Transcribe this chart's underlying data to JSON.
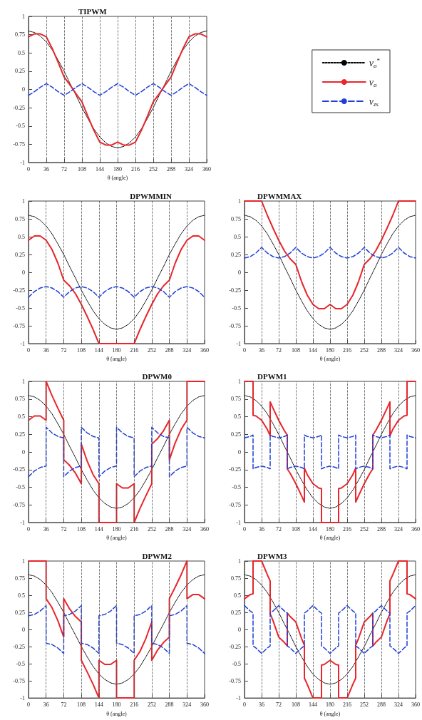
{
  "chart_data": [
    {
      "type": "line",
      "title": "TIPWM",
      "xlabel": "θ (angle)",
      "xlim": [
        0,
        360
      ],
      "xticks": [
        0,
        36,
        72,
        108,
        144,
        180,
        216,
        252,
        288,
        324,
        360
      ],
      "ylim": [
        -1,
        1
      ],
      "yticks": [
        -1,
        -0.75,
        -0.5,
        -0.25,
        0,
        0.25,
        0.5,
        0.75,
        1
      ],
      "grid": "x",
      "legend": "right",
      "x": [
        0,
        12,
        24,
        36,
        48,
        60,
        72,
        84,
        96,
        108,
        120,
        132,
        144,
        156,
        168,
        180,
        192,
        204,
        216,
        228,
        240,
        252,
        264,
        276,
        288,
        300,
        312,
        324,
        336,
        348,
        360
      ],
      "series": [
        {
          "name": "v$_{a}$$^{*}$",
          "color": "#000000",
          "line_style": "dotted",
          "values": [
            0.8,
            0.78,
            0.73,
            0.65,
            0.54,
            0.4,
            0.25,
            0.08,
            -0.08,
            -0.25,
            -0.4,
            -0.54,
            -0.65,
            -0.73,
            -0.78,
            -0.8,
            -0.78,
            -0.73,
            -0.65,
            -0.54,
            -0.4,
            -0.25,
            -0.08,
            0.08,
            0.25,
            0.4,
            0.54,
            0.65,
            0.73,
            0.78,
            0.8
          ]
        },
        {
          "name": "v$_{a}$",
          "color": "#e8262b",
          "line_style": "solid",
          "values": [
            0.72,
            0.76,
            0.76,
            0.72,
            0.56,
            0.37,
            0.17,
            0.06,
            -0.06,
            -0.17,
            -0.37,
            -0.56,
            -0.72,
            -0.76,
            -0.76,
            -0.72,
            -0.76,
            -0.76,
            -0.72,
            -0.56,
            -0.37,
            -0.17,
            -0.06,
            0.06,
            0.17,
            0.37,
            0.56,
            0.72,
            0.76,
            0.76,
            0.72
          ]
        },
        {
          "name": "v$_{zs}$",
          "color": "#1f3fd6",
          "line_style": "dashed",
          "values": [
            -0.08,
            -0.03,
            0.03,
            0.08,
            0.03,
            -0.03,
            -0.08,
            -0.03,
            0.03,
            0.08,
            0.03,
            -0.03,
            -0.08,
            -0.03,
            0.03,
            0.08,
            0.03,
            -0.03,
            -0.08,
            -0.03,
            0.03,
            0.08,
            0.03,
            -0.03,
            -0.08,
            -0.03,
            0.03,
            0.08,
            0.03,
            -0.03,
            -0.08
          ]
        }
      ]
    },
    {
      "type": "line",
      "title": "DPWMMIN",
      "xlabel": "θ (angle)",
      "xlim": [
        0,
        360
      ],
      "xticks": [
        0,
        36,
        72,
        108,
        144,
        180,
        216,
        252,
        288,
        324,
        360
      ],
      "ylim": [
        -1,
        1
      ],
      "yticks": [
        -1,
        -0.75,
        -0.5,
        -0.25,
        0,
        0.25,
        0.5,
        0.75,
        1
      ],
      "grid": "x",
      "x": [
        0,
        12,
        24,
        36,
        48,
        60,
        72,
        84,
        96,
        108,
        120,
        132,
        144,
        156,
        168,
        180,
        192,
        204,
        216,
        228,
        240,
        252,
        264,
        276,
        288,
        300,
        312,
        324,
        336,
        348,
        360
      ],
      "series": [
        {
          "color": "#000000",
          "line_style": "dotted",
          "values": [
            0.8,
            0.78,
            0.73,
            0.65,
            0.54,
            0.4,
            0.25,
            0.08,
            -0.08,
            -0.25,
            -0.4,
            -0.54,
            -0.65,
            -0.73,
            -0.78,
            -0.8,
            -0.78,
            -0.73,
            -0.65,
            -0.54,
            -0.4,
            -0.25,
            -0.08,
            0.08,
            0.25,
            0.4,
            0.54,
            0.65,
            0.73,
            0.78,
            0.8
          ]
        },
        {
          "color": "#e8262b",
          "line_style": "solid",
          "values": [
            0.45,
            0.51,
            0.51,
            0.45,
            0.32,
            0.13,
            -0.11,
            -0.19,
            -0.3,
            -0.45,
            -0.62,
            -0.8,
            -1,
            -1,
            -1,
            -1,
            -1,
            -1,
            -1,
            -0.8,
            -0.62,
            -0.45,
            -0.3,
            -0.19,
            -0.11,
            0.13,
            0.32,
            0.45,
            0.51,
            0.51,
            0.45
          ]
        },
        {
          "color": "#1f3fd6",
          "line_style": "dashed",
          "values": [
            -0.35,
            -0.27,
            -0.22,
            -0.2,
            -0.22,
            -0.27,
            -0.35,
            -0.27,
            -0.22,
            -0.2,
            -0.22,
            -0.27,
            -0.35,
            -0.27,
            -0.22,
            -0.2,
            -0.22,
            -0.27,
            -0.35,
            -0.27,
            -0.22,
            -0.2,
            -0.22,
            -0.27,
            -0.35,
            -0.27,
            -0.22,
            -0.2,
            -0.22,
            -0.27,
            -0.35
          ]
        }
      ]
    },
    {
      "type": "line",
      "title": "DPWMMAX",
      "xlabel": "θ (angle)",
      "xlim": [
        0,
        360
      ],
      "xticks": [
        0,
        36,
        72,
        108,
        144,
        180,
        216,
        252,
        288,
        324,
        360
      ],
      "ylim": [
        -1,
        1
      ],
      "yticks": [
        -1,
        -0.75,
        -0.5,
        -0.25,
        0,
        0.25,
        0.5,
        0.75,
        1
      ],
      "grid": "x",
      "x": [
        0,
        12,
        24,
        36,
        48,
        60,
        72,
        84,
        96,
        108,
        120,
        132,
        144,
        156,
        168,
        180,
        192,
        204,
        216,
        228,
        240,
        252,
        264,
        276,
        288,
        300,
        312,
        324,
        336,
        348,
        360
      ],
      "series": [
        {
          "color": "#000000",
          "line_style": "dotted",
          "values": [
            0.8,
            0.78,
            0.73,
            0.65,
            0.54,
            0.4,
            0.25,
            0.08,
            -0.08,
            -0.25,
            -0.4,
            -0.54,
            -0.65,
            -0.73,
            -0.78,
            -0.8,
            -0.78,
            -0.73,
            -0.65,
            -0.54,
            -0.4,
            -0.25,
            -0.08,
            0.08,
            0.25,
            0.4,
            0.54,
            0.65,
            0.73,
            0.78,
            0.8
          ]
        },
        {
          "color": "#e8262b",
          "line_style": "solid",
          "values": [
            1,
            1,
            1,
            1,
            0.8,
            0.62,
            0.45,
            0.3,
            0.19,
            0.11,
            -0.13,
            -0.32,
            -0.45,
            -0.51,
            -0.51,
            -0.45,
            -0.51,
            -0.51,
            -0.45,
            -0.32,
            -0.13,
            0.11,
            0.19,
            0.3,
            0.45,
            0.62,
            0.8,
            1,
            1,
            1,
            1
          ]
        },
        {
          "color": "#1f3fd6",
          "line_style": "dashed",
          "values": [
            0.2,
            0.22,
            0.27,
            0.35,
            0.27,
            0.22,
            0.2,
            0.22,
            0.27,
            0.35,
            0.27,
            0.22,
            0.2,
            0.22,
            0.27,
            0.35,
            0.27,
            0.22,
            0.2,
            0.22,
            0.27,
            0.35,
            0.27,
            0.22,
            0.2,
            0.22,
            0.27,
            0.35,
            0.27,
            0.22,
            0.2
          ]
        }
      ]
    },
    {
      "type": "line",
      "title": "DPWM0",
      "xlabel": "θ (angle)",
      "xlim": [
        0,
        360
      ],
      "xticks": [
        0,
        36,
        72,
        108,
        144,
        180,
        216,
        252,
        288,
        324,
        360
      ],
      "ylim": [
        -1,
        1
      ],
      "yticks": [
        -1,
        -0.75,
        -0.5,
        -0.25,
        0,
        0.25,
        0.5,
        0.75,
        1
      ],
      "grid": "x",
      "x": [
        0,
        12,
        24,
        36,
        48,
        60,
        72,
        84,
        96,
        108,
        120,
        132,
        144,
        156,
        168,
        180,
        192,
        204,
        216,
        228,
        240,
        252,
        264,
        276,
        288,
        300,
        312,
        324,
        336,
        348,
        360
      ],
      "series": [
        {
          "color": "#000000",
          "line_style": "dotted",
          "values": [
            0.8,
            0.78,
            0.73,
            0.65,
            0.54,
            0.4,
            0.25,
            0.08,
            -0.08,
            -0.25,
            -0.4,
            -0.54,
            -0.65,
            -0.73,
            -0.78,
            -0.8,
            -0.78,
            -0.73,
            -0.65,
            -0.54,
            -0.4,
            -0.25,
            -0.08,
            0.08,
            0.25,
            0.4,
            0.54,
            0.65,
            0.73,
            0.78,
            0.8
          ]
        },
        {
          "color": "#e8262b",
          "line_style": "solid",
          "x": [
            0,
            12,
            24,
            36,
            36,
            48,
            60,
            72,
            72,
            84,
            96,
            108,
            108,
            120,
            132,
            144,
            144,
            156,
            168,
            180,
            180,
            192,
            204,
            216,
            216,
            228,
            240,
            252,
            252,
            264,
            276,
            288,
            288,
            300,
            312,
            324,
            324,
            336,
            348,
            360
          ],
          "values": [
            0.45,
            0.51,
            0.51,
            0.45,
            1,
            0.8,
            0.62,
            0.45,
            -0.11,
            -0.19,
            -0.3,
            -0.45,
            0.11,
            -0.13,
            -0.32,
            -0.45,
            -1,
            -1,
            -1,
            -1,
            -0.45,
            -0.51,
            -0.51,
            -0.45,
            -1,
            -0.8,
            -0.62,
            -0.45,
            0.11,
            0.19,
            0.3,
            0.45,
            -0.11,
            0.13,
            0.32,
            0.45,
            1,
            1,
            1,
            1
          ]
        },
        {
          "color": "#1f3fd6",
          "line_style": "dashed",
          "x": [
            0,
            12,
            24,
            36,
            36,
            48,
            60,
            72,
            72,
            84,
            96,
            108,
            108,
            120,
            132,
            144,
            144,
            156,
            168,
            180,
            180,
            192,
            204,
            216,
            216,
            228,
            240,
            252,
            252,
            264,
            276,
            288,
            288,
            300,
            312,
            324,
            324,
            336,
            348,
            360
          ],
          "values": [
            -0.35,
            -0.27,
            -0.22,
            -0.2,
            0.35,
            0.27,
            0.22,
            0.2,
            -0.35,
            -0.27,
            -0.22,
            -0.2,
            0.35,
            0.27,
            0.22,
            0.2,
            -0.35,
            -0.27,
            -0.22,
            -0.2,
            0.35,
            0.27,
            0.22,
            0.2,
            -0.35,
            -0.27,
            -0.22,
            -0.2,
            0.35,
            0.27,
            0.22,
            0.2,
            -0.35,
            -0.27,
            -0.22,
            -0.2,
            0.35,
            0.27,
            0.22,
            0.2
          ]
        }
      ]
    },
    {
      "type": "line",
      "title": "DPWM1",
      "xlabel": "θ (angle)",
      "xlim": [
        0,
        360
      ],
      "xticks": [
        0,
        36,
        72,
        108,
        144,
        180,
        216,
        252,
        288,
        324,
        360
      ],
      "ylim": [
        -1,
        1
      ],
      "yticks": [
        -1,
        -0.75,
        -0.5,
        -0.25,
        0,
        0.25,
        0.5,
        0.75,
        1
      ],
      "grid": "x",
      "x": [
        0,
        12,
        24,
        36,
        48,
        60,
        72,
        84,
        96,
        108,
        120,
        132,
        144,
        156,
        168,
        180,
        192,
        204,
        216,
        228,
        240,
        252,
        264,
        276,
        288,
        300,
        312,
        324,
        336,
        348,
        360
      ],
      "series": [
        {
          "color": "#000000",
          "line_style": "dotted",
          "values": [
            0.8,
            0.78,
            0.73,
            0.65,
            0.54,
            0.4,
            0.25,
            0.08,
            -0.08,
            -0.25,
            -0.4,
            -0.54,
            -0.65,
            -0.73,
            -0.78,
            -0.8,
            -0.78,
            -0.73,
            -0.65,
            -0.54,
            -0.4,
            -0.25,
            -0.08,
            0.08,
            0.25,
            0.4,
            0.54,
            0.65,
            0.73,
            0.78,
            0.8
          ]
        },
        {
          "color": "#e8262b",
          "line_style": "solid",
          "x": [
            0,
            12,
            18,
            18,
            24,
            36,
            48,
            54,
            54,
            60,
            72,
            84,
            90,
            90,
            96,
            108,
            120,
            126,
            126,
            132,
            144,
            156,
            162,
            162,
            168,
            180,
            192,
            198,
            198,
            204,
            216,
            228,
            234,
            234,
            240,
            252,
            264,
            270,
            270,
            276,
            288,
            300,
            306,
            306,
            312,
            324,
            336,
            342,
            342,
            348,
            360
          ],
          "values": [
            1,
            1,
            1,
            0.52,
            0.51,
            0.45,
            0.32,
            0.23,
            0.71,
            0.62,
            0.45,
            0.3,
            0.24,
            -0.24,
            -0.3,
            -0.45,
            -0.62,
            -0.71,
            -0.23,
            -0.32,
            -0.45,
            -0.51,
            -0.52,
            -1,
            -1,
            -1,
            -1,
            -1,
            -0.52,
            -0.51,
            -0.45,
            -0.32,
            -0.23,
            -0.71,
            -0.62,
            -0.45,
            -0.3,
            -0.24,
            0.24,
            0.3,
            0.45,
            0.62,
            0.71,
            0.23,
            0.32,
            0.45,
            0.51,
            0.52,
            1,
            1,
            1
          ]
        },
        {
          "color": "#1f3fd6",
          "line_style": "dashed",
          "x": [
            0,
            12,
            18,
            18,
            24,
            36,
            48,
            54,
            54,
            60,
            72,
            84,
            90,
            90,
            96,
            108,
            120,
            126,
            126,
            132,
            144,
            156,
            162,
            162,
            168,
            180,
            192,
            198,
            198,
            204,
            216,
            228,
            234,
            234,
            240,
            252,
            264,
            270,
            270,
            276,
            288,
            300,
            306,
            306,
            312,
            324,
            336,
            342,
            342,
            348,
            360
          ],
          "values": [
            0.2,
            0.22,
            0.24,
            -0.24,
            -0.22,
            -0.2,
            -0.22,
            -0.24,
            0.24,
            0.22,
            0.2,
            0.22,
            0.24,
            -0.24,
            -0.22,
            -0.2,
            -0.22,
            -0.24,
            0.24,
            0.22,
            0.2,
            0.22,
            0.24,
            -0.24,
            -0.22,
            -0.2,
            -0.22,
            -0.24,
            0.24,
            0.22,
            0.2,
            0.22,
            0.24,
            -0.24,
            -0.22,
            -0.2,
            -0.22,
            -0.24,
            0.24,
            0.22,
            0.2,
            0.22,
            0.24,
            -0.24,
            -0.22,
            -0.2,
            -0.22,
            -0.24,
            0.24,
            0.22,
            0.2
          ]
        }
      ]
    },
    {
      "type": "line",
      "title": "DPWM2",
      "xlabel": "θ (angle)",
      "xlim": [
        0,
        360
      ],
      "xticks": [
        0,
        36,
        72,
        108,
        144,
        180,
        216,
        252,
        288,
        324,
        360
      ],
      "ylim": [
        -1,
        1
      ],
      "yticks": [
        -1,
        -0.75,
        -0.5,
        -0.25,
        0,
        0.25,
        0.5,
        0.75,
        1
      ],
      "grid": "x",
      "x": [
        0,
        12,
        24,
        36,
        48,
        60,
        72,
        84,
        96,
        108,
        120,
        132,
        144,
        156,
        168,
        180,
        192,
        204,
        216,
        228,
        240,
        252,
        264,
        276,
        288,
        300,
        312,
        324,
        336,
        348,
        360
      ],
      "series": [
        {
          "color": "#000000",
          "line_style": "dotted",
          "values": [
            0.8,
            0.78,
            0.73,
            0.65,
            0.54,
            0.4,
            0.25,
            0.08,
            -0.08,
            -0.25,
            -0.4,
            -0.54,
            -0.65,
            -0.73,
            -0.78,
            -0.8,
            -0.78,
            -0.73,
            -0.65,
            -0.54,
            -0.4,
            -0.25,
            -0.08,
            0.08,
            0.25,
            0.4,
            0.54,
            0.65,
            0.73,
            0.78,
            0.8
          ]
        },
        {
          "color": "#e8262b",
          "line_style": "solid",
          "x": [
            0,
            12,
            24,
            36,
            36,
            48,
            60,
            72,
            72,
            84,
            96,
            108,
            108,
            120,
            132,
            144,
            144,
            156,
            168,
            180,
            180,
            192,
            204,
            216,
            216,
            228,
            240,
            252,
            252,
            264,
            276,
            288,
            288,
            300,
            312,
            324,
            324,
            336,
            348,
            360
          ],
          "values": [
            1,
            1,
            1,
            1,
            0.45,
            0.32,
            0.13,
            -0.11,
            0.45,
            0.3,
            0.19,
            0.11,
            -0.45,
            -0.62,
            -0.8,
            -1,
            -0.45,
            -0.51,
            -0.51,
            -0.45,
            -1,
            -1,
            -1,
            -1,
            -0.45,
            -0.32,
            -0.13,
            0.11,
            -0.45,
            -0.3,
            -0.19,
            -0.11,
            0.45,
            0.62,
            0.8,
            1,
            0.45,
            0.51,
            0.51,
            0.45
          ]
        },
        {
          "color": "#1f3fd6",
          "line_style": "dashed",
          "x": [
            0,
            12,
            24,
            36,
            36,
            48,
            60,
            72,
            72,
            84,
            96,
            108,
            108,
            120,
            132,
            144,
            144,
            156,
            168,
            180,
            180,
            192,
            204,
            216,
            216,
            228,
            240,
            252,
            252,
            264,
            276,
            288,
            288,
            300,
            312,
            324,
            324,
            336,
            348,
            360
          ],
          "values": [
            0.2,
            0.22,
            0.27,
            0.35,
            -0.2,
            -0.22,
            -0.27,
            -0.35,
            0.2,
            0.22,
            0.27,
            0.35,
            -0.2,
            -0.22,
            -0.27,
            -0.35,
            0.2,
            0.22,
            0.27,
            0.35,
            -0.2,
            -0.22,
            -0.27,
            -0.35,
            0.2,
            0.22,
            0.27,
            0.35,
            -0.2,
            -0.22,
            -0.27,
            -0.35,
            0.2,
            0.22,
            0.27,
            0.35,
            -0.2,
            -0.22,
            -0.27,
            -0.35
          ]
        }
      ]
    },
    {
      "type": "line",
      "title": "DPWM3",
      "xlabel": "θ (angle)",
      "xlim": [
        0,
        360
      ],
      "xticks": [
        0,
        36,
        72,
        108,
        144,
        180,
        216,
        252,
        288,
        324,
        360
      ],
      "ylim": [
        -1,
        1
      ],
      "yticks": [
        -1,
        -0.75,
        -0.5,
        -0.25,
        0,
        0.25,
        0.5,
        0.75,
        1
      ],
      "grid": "x",
      "x": [
        0,
        12,
        24,
        36,
        48,
        60,
        72,
        84,
        96,
        108,
        120,
        132,
        144,
        156,
        168,
        180,
        192,
        204,
        216,
        228,
        240,
        252,
        264,
        276,
        288,
        300,
        312,
        324,
        336,
        348,
        360
      ],
      "series": [
        {
          "color": "#000000",
          "line_style": "dotted",
          "values": [
            0.8,
            0.78,
            0.73,
            0.65,
            0.54,
            0.4,
            0.25,
            0.08,
            -0.08,
            -0.25,
            -0.4,
            -0.54,
            -0.65,
            -0.73,
            -0.78,
            -0.8,
            -0.78,
            -0.73,
            -0.65,
            -0.54,
            -0.4,
            -0.25,
            -0.08,
            0.08,
            0.25,
            0.4,
            0.54,
            0.65,
            0.73,
            0.78,
            0.8
          ]
        },
        {
          "color": "#e8262b",
          "line_style": "solid",
          "x": [
            0,
            12,
            18,
            18,
            24,
            36,
            48,
            54,
            54,
            60,
            72,
            84,
            90,
            90,
            96,
            108,
            120,
            126,
            126,
            132,
            144,
            156,
            162,
            162,
            168,
            180,
            192,
            198,
            198,
            204,
            216,
            228,
            234,
            234,
            240,
            252,
            264,
            270,
            270,
            276,
            288,
            300,
            306,
            306,
            312,
            324,
            336,
            342,
            342,
            348,
            360
          ],
          "values": [
            0.45,
            0.51,
            0.52,
            1,
            1,
            1,
            0.8,
            0.71,
            0.23,
            0.13,
            -0.11,
            -0.19,
            -0.24,
            0.24,
            0.19,
            0.11,
            -0.13,
            -0.23,
            -0.71,
            -0.8,
            -1,
            -1,
            -1,
            -0.52,
            -0.51,
            -0.45,
            -0.51,
            -0.52,
            -1,
            -1,
            -1,
            -0.8,
            -0.71,
            -0.23,
            -0.13,
            0.11,
            0.19,
            0.24,
            -0.24,
            -0.19,
            -0.11,
            0.13,
            0.23,
            0.71,
            0.8,
            1,
            1,
            1,
            0.52,
            0.51,
            0.45
          ]
        },
        {
          "color": "#1f3fd6",
          "line_style": "dashed",
          "x": [
            0,
            12,
            18,
            18,
            24,
            36,
            48,
            54,
            54,
            60,
            72,
            84,
            90,
            90,
            96,
            108,
            120,
            126,
            126,
            132,
            144,
            156,
            162,
            162,
            168,
            180,
            192,
            198,
            198,
            204,
            216,
            228,
            234,
            234,
            240,
            252,
            264,
            270,
            270,
            276,
            288,
            300,
            306,
            306,
            312,
            324,
            336,
            342,
            342,
            348,
            360
          ],
          "values": [
            0.35,
            0.27,
            0.24,
            -0.24,
            -0.27,
            -0.35,
            -0.27,
            -0.24,
            0.24,
            0.27,
            0.35,
            0.27,
            0.24,
            -0.24,
            -0.27,
            -0.35,
            -0.27,
            -0.24,
            0.24,
            0.27,
            0.35,
            0.27,
            0.24,
            -0.24,
            -0.27,
            -0.35,
            -0.27,
            -0.24,
            0.24,
            0.27,
            0.35,
            0.27,
            0.24,
            -0.24,
            -0.27,
            -0.35,
            -0.27,
            -0.24,
            0.24,
            0.27,
            0.35,
            0.27,
            0.24,
            -0.24,
            -0.27,
            -0.35,
            -0.27,
            -0.24,
            0.24,
            0.27,
            0.35
          ]
        }
      ]
    }
  ]
}
